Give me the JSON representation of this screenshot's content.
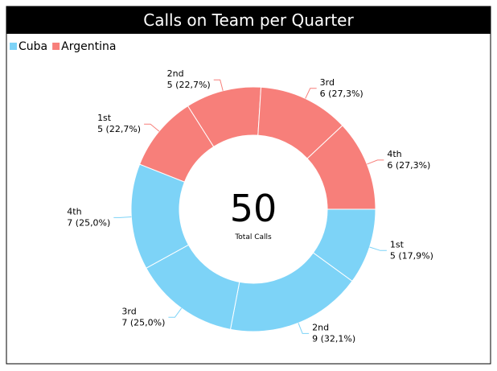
{
  "chart_data": {
    "type": "donut",
    "title": "Calls on Team per Quarter",
    "categories": [
      "1st",
      "2nd",
      "3rd",
      "4th"
    ],
    "series": [
      {
        "name": "Cuba",
        "color": "#7dd3f7",
        "values": [
          5,
          9,
          7,
          7
        ],
        "value_labels": [
          "5 (17,9%)",
          "9 (32,1%)",
          "7 (25,0%)",
          "7 (25,0%)"
        ]
      },
      {
        "name": "Argentina",
        "color": "#f77f7a",
        "values": [
          5,
          5,
          6,
          6
        ],
        "value_labels": [
          "5 (22,7%)",
          "5 (22,7%)",
          "6 (27,3%)",
          "6 (27,3%)"
        ]
      }
    ],
    "center_value": 50,
    "center_label": "Total Calls",
    "legend": "top-left"
  }
}
